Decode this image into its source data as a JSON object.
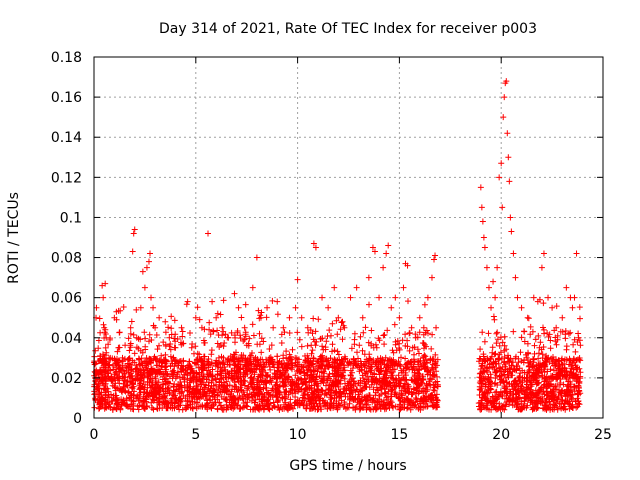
{
  "chart_data": {
    "type": "scatter",
    "title": "Day 314 of 2021, Rate Of TEC Index for receiver p003",
    "xlabel": "GPS time / hours",
    "ylabel": "ROTI / TECUs",
    "xlim": [
      0,
      25
    ],
    "ylim": [
      0,
      0.18
    ],
    "x_ticks": [
      0,
      5,
      10,
      15,
      20,
      25
    ],
    "y_ticks": [
      0,
      0.02,
      0.04,
      0.06,
      0.08,
      0.1,
      0.12,
      0.14,
      0.16,
      0.18
    ],
    "x_tick_labels": [
      "0",
      "5",
      "10",
      "15",
      "20",
      "25"
    ],
    "y_tick_labels": [
      "0",
      "0.02",
      "0.04",
      "0.06",
      "0.08",
      "0.1",
      "0.12",
      "0.14",
      "0.16",
      "0.18"
    ],
    "grid": true,
    "marker": "+",
    "marker_color": "#ff0000",
    "data_gap_hours": [
      16.9,
      18.9
    ],
    "series": [
      {
        "points": [
          [
            0.05,
            0.012
          ],
          [
            0.1,
            0.05
          ],
          [
            0.12,
            0.055
          ],
          [
            0.2,
            0.02
          ],
          [
            0.3,
            0.031
          ],
          [
            0.4,
            0.066
          ],
          [
            0.45,
            0.06
          ],
          [
            0.5,
            0.045
          ],
          [
            0.55,
            0.067
          ],
          [
            0.6,
            0.04
          ],
          [
            0.7,
            0.025
          ],
          [
            0.8,
            0.03
          ],
          [
            1.0,
            0.05
          ],
          [
            1.1,
            0.053
          ],
          [
            1.2,
            0.035
          ],
          [
            1.4,
            0.03
          ],
          [
            1.6,
            0.025
          ],
          [
            1.8,
            0.045
          ],
          [
            1.9,
            0.083
          ],
          [
            1.95,
            0.092
          ],
          [
            2.0,
            0.094
          ],
          [
            2.1,
            0.04
          ],
          [
            2.3,
            0.055
          ],
          [
            2.4,
            0.073
          ],
          [
            2.5,
            0.065
          ],
          [
            2.6,
            0.075
          ],
          [
            2.7,
            0.078
          ],
          [
            2.75,
            0.082
          ],
          [
            2.8,
            0.06
          ],
          [
            2.9,
            0.055
          ],
          [
            3.0,
            0.045
          ],
          [
            3.2,
            0.05
          ],
          [
            3.5,
            0.048
          ],
          [
            3.7,
            0.04
          ],
          [
            4.0,
            0.035
          ],
          [
            4.3,
            0.045
          ],
          [
            4.6,
            0.058
          ],
          [
            4.8,
            0.035
          ],
          [
            5.0,
            0.05
          ],
          [
            5.3,
            0.045
          ],
          [
            5.6,
            0.092
          ],
          [
            5.8,
            0.058
          ],
          [
            6.0,
            0.05
          ],
          [
            6.3,
            0.045
          ],
          [
            6.6,
            0.04
          ],
          [
            6.9,
            0.062
          ],
          [
            7.1,
            0.055
          ],
          [
            7.4,
            0.045
          ],
          [
            7.8,
            0.065
          ],
          [
            8.0,
            0.08
          ],
          [
            8.2,
            0.05
          ],
          [
            8.5,
            0.055
          ],
          [
            8.8,
            0.045
          ],
          [
            9.0,
            0.058
          ],
          [
            9.3,
            0.045
          ],
          [
            9.6,
            0.05
          ],
          [
            9.9,
            0.055
          ],
          [
            10.0,
            0.069
          ],
          [
            10.2,
            0.05
          ],
          [
            10.5,
            0.045
          ],
          [
            10.8,
            0.087
          ],
          [
            10.9,
            0.085
          ],
          [
            11.2,
            0.06
          ],
          [
            11.5,
            0.055
          ],
          [
            11.8,
            0.065
          ],
          [
            12.0,
            0.05
          ],
          [
            12.3,
            0.045
          ],
          [
            12.6,
            0.06
          ],
          [
            12.9,
            0.065
          ],
          [
            13.2,
            0.05
          ],
          [
            13.5,
            0.07
          ],
          [
            13.7,
            0.085
          ],
          [
            13.8,
            0.083
          ],
          [
            14.0,
            0.06
          ],
          [
            14.2,
            0.075
          ],
          [
            14.35,
            0.082
          ],
          [
            14.45,
            0.086
          ],
          [
            14.6,
            0.055
          ],
          [
            14.8,
            0.06
          ],
          [
            15.0,
            0.05
          ],
          [
            15.2,
            0.065
          ],
          [
            15.3,
            0.077
          ],
          [
            15.4,
            0.076
          ],
          [
            15.6,
            0.045
          ],
          [
            15.8,
            0.04
          ],
          [
            16.0,
            0.05
          ],
          [
            16.2,
            0.045
          ],
          [
            16.4,
            0.06
          ],
          [
            16.6,
            0.07
          ],
          [
            16.7,
            0.079
          ],
          [
            16.75,
            0.081
          ],
          [
            16.8,
            0.045
          ],
          [
            19.0,
            0.115
          ],
          [
            19.05,
            0.105
          ],
          [
            19.1,
            0.098
          ],
          [
            19.15,
            0.09
          ],
          [
            19.2,
            0.085
          ],
          [
            19.3,
            0.075
          ],
          [
            19.4,
            0.065
          ],
          [
            19.5,
            0.055
          ],
          [
            19.6,
            0.068
          ],
          [
            19.7,
            0.06
          ],
          [
            19.8,
            0.075
          ],
          [
            19.9,
            0.12
          ],
          [
            20.0,
            0.127
          ],
          [
            20.05,
            0.105
          ],
          [
            20.1,
            0.15
          ],
          [
            20.15,
            0.16
          ],
          [
            20.2,
            0.167
          ],
          [
            20.25,
            0.168
          ],
          [
            20.3,
            0.142
          ],
          [
            20.35,
            0.13
          ],
          [
            20.4,
            0.118
          ],
          [
            20.45,
            0.1
          ],
          [
            20.5,
            0.093
          ],
          [
            20.6,
            0.082
          ],
          [
            20.7,
            0.07
          ],
          [
            20.8,
            0.06
          ],
          [
            21.0,
            0.055
          ],
          [
            21.3,
            0.05
          ],
          [
            21.6,
            0.06
          ],
          [
            21.8,
            0.058
          ],
          [
            22.0,
            0.075
          ],
          [
            22.1,
            0.082
          ],
          [
            22.3,
            0.06
          ],
          [
            22.5,
            0.055
          ],
          [
            22.7,
            0.045
          ],
          [
            23.0,
            0.05
          ],
          [
            23.2,
            0.065
          ],
          [
            23.4,
            0.06
          ],
          [
            23.5,
            0.055
          ],
          [
            23.6,
            0.06
          ],
          [
            23.7,
            0.082
          ],
          [
            23.8,
            0.04
          ]
        ]
      }
    ]
  }
}
